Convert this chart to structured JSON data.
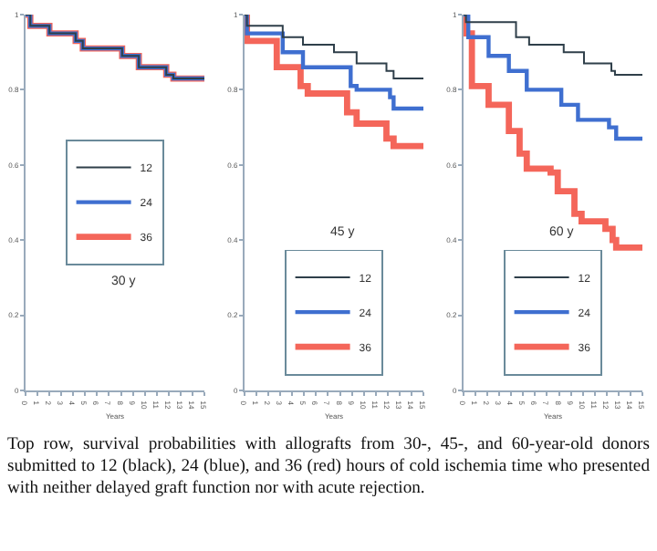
{
  "chart_data": [
    {
      "type": "step",
      "xlabel": "Years",
      "x": [
        0,
        0.4,
        2,
        4.2,
        4.8,
        7.3,
        8.1,
        9.5,
        11.8,
        12.4,
        15
      ],
      "xlim": [
        0,
        15
      ],
      "xticks": [
        0,
        1,
        2,
        3,
        4,
        5,
        6,
        7,
        8,
        9,
        10,
        11,
        12,
        13,
        14,
        15
      ],
      "ylim": [
        0,
        1
      ],
      "yticks": [
        0,
        0.2,
        0.4,
        0.6,
        0.8,
        1
      ],
      "grid": false,
      "legend": "center",
      "marker": "none",
      "annotations": [
        "30 y",
        "Top row, survival probabilities with allografts from 30-, 45-, and 60-year-old donors submitted to 12 (black), 24 (blue), and 36 (red) hours of cold ischemia time who presented with neither delayed graft function nor with acute rejection."
      ],
      "series": [
        {
          "name": "12",
          "color": "#2f3f4a",
          "values": [
            1,
            0.97,
            0.95,
            0.93,
            0.91,
            0.91,
            0.89,
            0.86,
            0.84,
            0.83,
            0.83
          ]
        },
        {
          "name": "24",
          "color": "#3f6fd0",
          "values": [
            1,
            0.97,
            0.95,
            0.93,
            0.91,
            0.91,
            0.89,
            0.86,
            0.84,
            0.83,
            0.83
          ]
        },
        {
          "name": "36",
          "color": "#f4665a",
          "values": [
            1,
            0.97,
            0.95,
            0.93,
            0.91,
            0.91,
            0.89,
            0.86,
            0.84,
            0.83,
            0.83
          ]
        }
      ]
    },
    {
      "type": "step",
      "xlabel": "Years",
      "xlim": [
        0,
        15
      ],
      "xticks": [
        0,
        1,
        2,
        3,
        4,
        5,
        6,
        7,
        8,
        9,
        10,
        11,
        12,
        13,
        14,
        15
      ],
      "ylim": [
        0,
        1
      ],
      "yticks": [
        0,
        0.2,
        0.4,
        0.6,
        0.8,
        1
      ],
      "grid": false,
      "legend": "bottom",
      "marker": "none",
      "annotations": [
        "45 y"
      ],
      "series": [
        {
          "name": "12",
          "color": "#2f3f4a",
          "x": [
            0,
            0.2,
            3.2,
            4.9,
            7.5,
            9.4,
            11.9,
            12.5,
            15
          ],
          "values": [
            1,
            0.97,
            0.94,
            0.92,
            0.9,
            0.87,
            0.85,
            0.83,
            0.83
          ]
        },
        {
          "name": "24",
          "color": "#3f6fd0",
          "x": [
            0,
            0.2,
            3.2,
            4.9,
            7.2,
            8.9,
            9.4,
            12.2,
            12.5,
            15
          ],
          "values": [
            1,
            0.95,
            0.9,
            0.86,
            0.86,
            0.81,
            0.8,
            0.78,
            0.75,
            0.75
          ]
        },
        {
          "name": "36",
          "color": "#f4665a",
          "x": [
            0,
            0.2,
            2.7,
            4.7,
            5.3,
            7.5,
            8.6,
            9.4,
            11.9,
            12.5,
            15
          ],
          "values": [
            1,
            0.93,
            0.86,
            0.81,
            0.79,
            0.79,
            0.74,
            0.71,
            0.67,
            0.65,
            0.65
          ]
        }
      ]
    },
    {
      "type": "step",
      "xlabel": "Years",
      "xlim": [
        0,
        15
      ],
      "xticks": [
        0,
        1,
        2,
        3,
        4,
        5,
        6,
        7,
        8,
        9,
        10,
        11,
        12,
        13,
        14,
        15
      ],
      "ylim": [
        0,
        1
      ],
      "yticks": [
        0,
        0.2,
        0.4,
        0.6,
        0.8,
        1
      ],
      "grid": false,
      "legend": "bottom",
      "marker": "none",
      "annotations": [
        "60 y"
      ],
      "series": [
        {
          "name": "12",
          "color": "#2f3f4a",
          "x": [
            0,
            0.2,
            4.4,
            5.5,
            8.4,
            10.1,
            12.4,
            12.7,
            15
          ],
          "values": [
            1,
            0.98,
            0.94,
            0.92,
            0.9,
            0.87,
            0.85,
            0.84,
            0.84
          ]
        },
        {
          "name": "24",
          "color": "#3f6fd0",
          "x": [
            0,
            0.4,
            2.1,
            3.8,
            5.3,
            7.3,
            8.2,
            9.6,
            12.2,
            12.8,
            15
          ],
          "values": [
            1,
            0.94,
            0.89,
            0.85,
            0.8,
            0.8,
            0.76,
            0.72,
            0.7,
            0.67,
            0.67
          ]
        },
        {
          "name": "36",
          "color": "#f4665a",
          "x": [
            0,
            0.2,
            0.7,
            2.1,
            3.8,
            4.7,
            5.3,
            7.3,
            7.9,
            9.3,
            9.9,
            11.9,
            12.5,
            12.8,
            15
          ],
          "values": [
            1,
            0.95,
            0.81,
            0.76,
            0.69,
            0.63,
            0.59,
            0.58,
            0.53,
            0.47,
            0.45,
            0.43,
            0.4,
            0.38,
            0.38
          ]
        }
      ]
    }
  ]
}
